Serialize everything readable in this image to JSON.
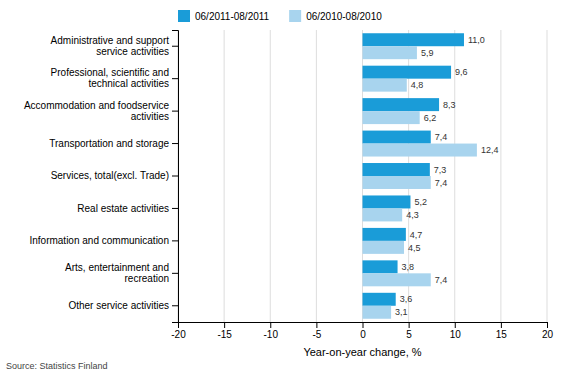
{
  "chart_data": {
    "type": "bar",
    "orientation": "horizontal",
    "x_label": "Year-on-year change, %",
    "annotations": [
      "Source: Statistics Finland"
    ],
    "categories": [
      "Administrative and support service activities",
      "Professional, scientific and technical activities",
      "Accommodation and foodservice activities",
      "Transportation and storage",
      "Services, total(excl. Trade)",
      "Real estate activities",
      "Information and communication",
      "Arts, entertainment and recreation",
      "Other service activities"
    ],
    "series": [
      {
        "name": "06/2011-08/2011",
        "color": "#1a9cd8",
        "values": [
          11.0,
          9.6,
          8.3,
          7.4,
          7.3,
          5.2,
          4.7,
          3.8,
          3.6
        ],
        "value_labels": [
          "11,0",
          "9,6",
          "8,3",
          "7,4",
          "7,3",
          "5,2",
          "4,7",
          "3,8",
          "3,6"
        ]
      },
      {
        "name": "06/2010-08/2010",
        "color": "#a8d4ee",
        "values": [
          5.9,
          4.8,
          6.2,
          12.4,
          7.4,
          4.3,
          4.5,
          7.4,
          3.1
        ],
        "value_labels": [
          "5,9",
          "4,8",
          "6,2",
          "12,4",
          "7,4",
          "4,3",
          "4,5",
          "7,4",
          "3,1"
        ]
      }
    ],
    "xlim": [
      -20,
      20
    ],
    "xticks": [
      -20,
      -15,
      -10,
      -5,
      0,
      5,
      10,
      15,
      20
    ],
    "grid": true,
    "legend": "top",
    "data_labels": true
  }
}
